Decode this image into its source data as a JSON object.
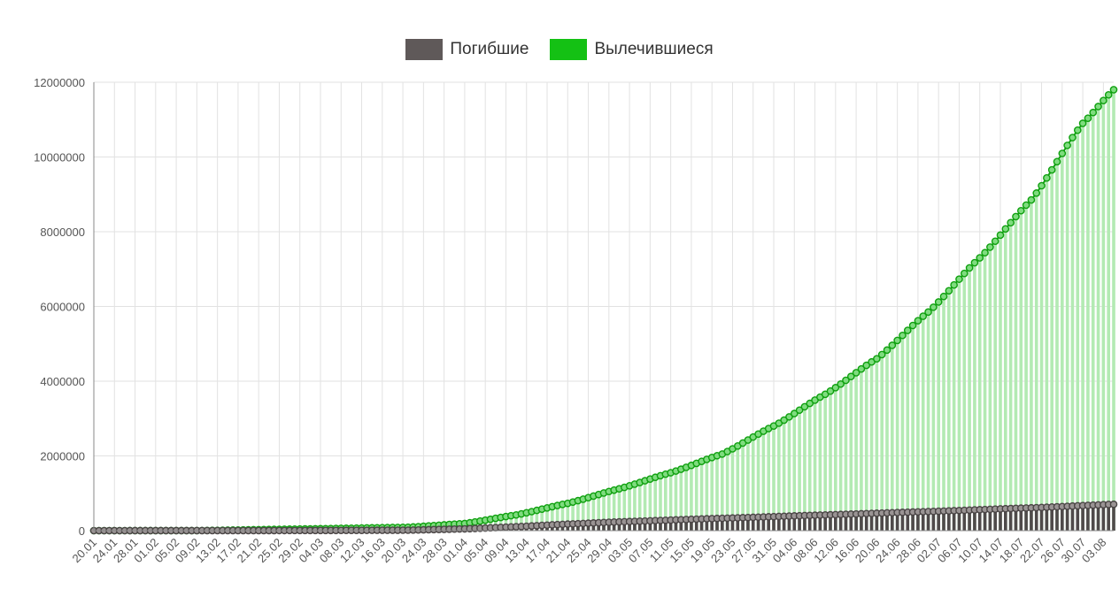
{
  "legend": [
    {
      "name": "Погибшие",
      "color": "#5f5959"
    },
    {
      "name": "Вылечившиеся",
      "color": "#14c114"
    }
  ],
  "chart_data": {
    "type": "bar",
    "title": "",
    "xlabel": "",
    "ylabel": "",
    "ylim": [
      0,
      12000000
    ],
    "yticks": [
      0,
      2000000,
      4000000,
      6000000,
      8000000,
      10000000,
      12000000
    ],
    "x_start": "20.01",
    "x_end": "05.08",
    "num_days": 199,
    "tick_every_days": 4,
    "x_tick_labels": [
      "20.01",
      "24.01",
      "28.01",
      "01.02",
      "05.02",
      "09.02",
      "13.02",
      "17.02",
      "21.02",
      "25.02",
      "29.02",
      "04.03",
      "08.03",
      "12.03",
      "16.03",
      "20.03",
      "24.03",
      "28.03",
      "01.04",
      "05.04",
      "09.04",
      "13.04",
      "17.04",
      "21.04",
      "25.04",
      "29.04",
      "03.05",
      "07.05",
      "11.05",
      "15.05",
      "19.05",
      "23.05",
      "27.05",
      "31.05",
      "04.06",
      "08.06",
      "12.06",
      "16.06",
      "20.06",
      "24.06",
      "28.06",
      "02.07",
      "06.07",
      "10.07",
      "14.07",
      "18.07",
      "22.07",
      "26.07",
      "30.07",
      "03.08"
    ],
    "grid": true,
    "legend_position": "top-center",
    "series": [
      {
        "name": "Погибшие",
        "color": "#5f5959",
        "x": [
          "20.01",
          "09.02",
          "01.03",
          "21.03",
          "01.04",
          "11.04",
          "21.04",
          "01.05",
          "21.05",
          "10.06",
          "30.06",
          "20.07",
          "05.08"
        ],
        "values": [
          0,
          900,
          3000,
          12000,
          47000,
          105000,
          175000,
          235000,
          330000,
          420000,
          510000,
          610000,
          705000
        ]
      },
      {
        "name": "Вылечившиеся",
        "color": "#14c114",
        "x": [
          "20.01",
          "09.02",
          "01.03",
          "21.03",
          "01.04",
          "11.04",
          "21.04",
          "01.05",
          "11.05",
          "21.05",
          "31.05",
          "10.06",
          "20.06",
          "30.06",
          "10.07",
          "20.07",
          "30.07",
          "05.08"
        ],
        "values": [
          0,
          1000,
          45000,
          90000,
          190000,
          420000,
          730000,
          1120000,
          1550000,
          2050000,
          2800000,
          3650000,
          4600000,
          5850000,
          7300000,
          8850000,
          10900000,
          11800000
        ]
      }
    ]
  }
}
